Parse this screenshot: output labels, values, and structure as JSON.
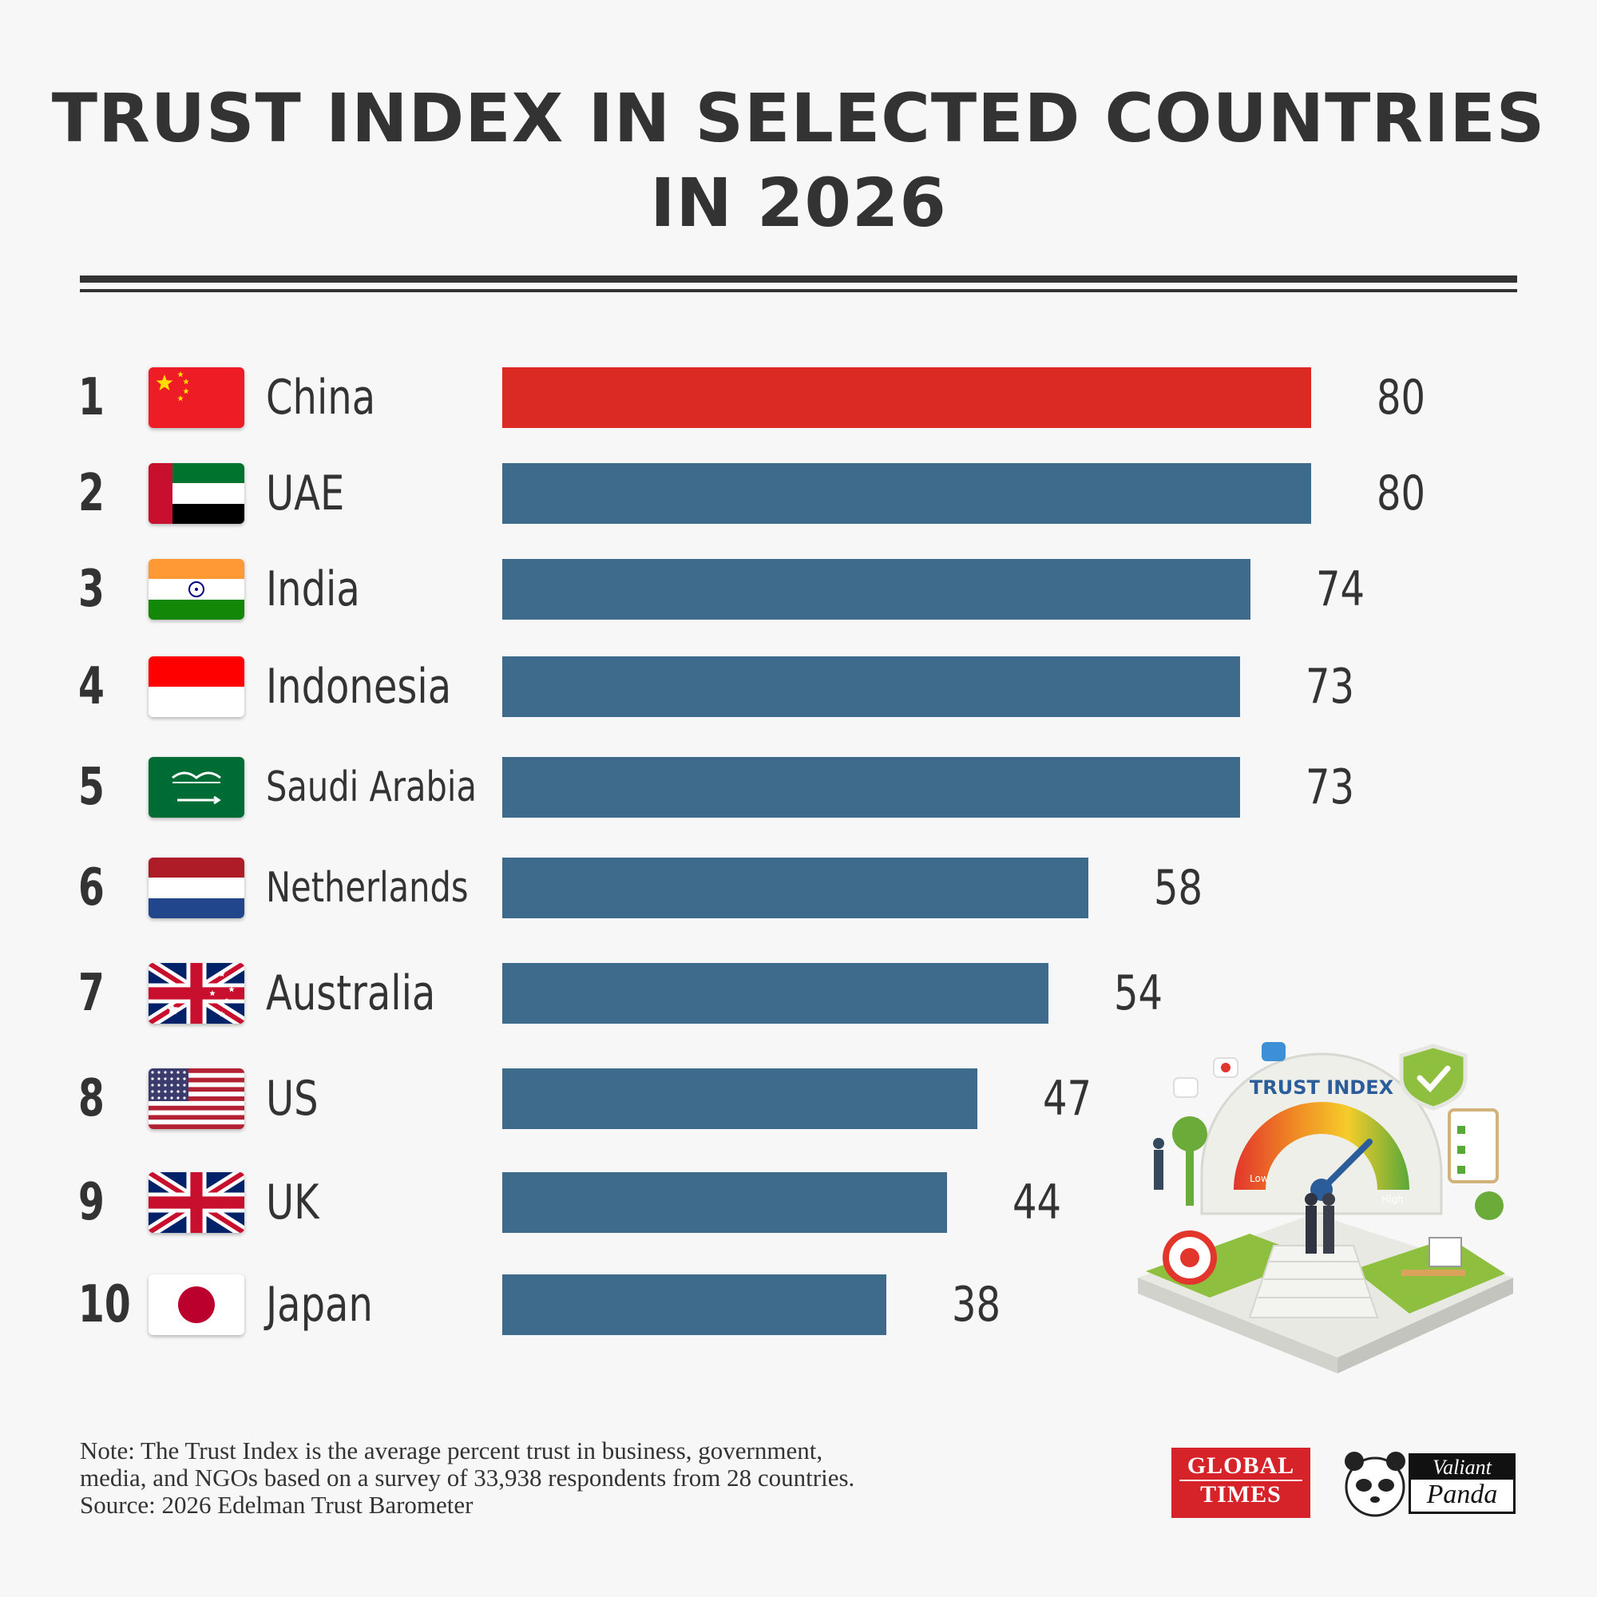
{
  "chart_data": {
    "type": "bar",
    "orientation": "horizontal",
    "title": "TRUST INDEX IN SELECTED COUNTRIES IN 2026",
    "title_lines": [
      "TRUST INDEX IN SELECTED COUNTRIES",
      "IN 2026"
    ],
    "ranks": [
      "1",
      "2",
      "3",
      "4",
      "5",
      "6",
      "7",
      "8",
      "9",
      "10"
    ],
    "categories": [
      "China",
      "UAE",
      "India",
      "Indonesia",
      "Saudi Arabia",
      "Netherlands",
      "Australia",
      "US",
      "UK",
      "Japan"
    ],
    "values": [
      80,
      80,
      74,
      73,
      73,
      58,
      54,
      47,
      44,
      38
    ],
    "xlim": [
      0,
      80
    ],
    "grid": false,
    "colors": {
      "highlight": "#da2a23",
      "bar": "#3e6a8c"
    },
    "highlight_category": "China"
  },
  "note": {
    "lines": [
      "Note: The Trust Index is the average percent trust in business, government,",
      "media, and NGOs based on a survey of 33,938 respondents from 28 countries."
    ],
    "source": "Source: 2026 Edelman Trust Barometer"
  },
  "illustration": {
    "gauge_title": "TRUST INDEX",
    "low_label": "Low",
    "high_label": "High"
  },
  "logos": {
    "global_times": [
      "GLOBAL",
      "TIMES"
    ],
    "valiant_panda": [
      "Valiant",
      "Panda"
    ]
  }
}
